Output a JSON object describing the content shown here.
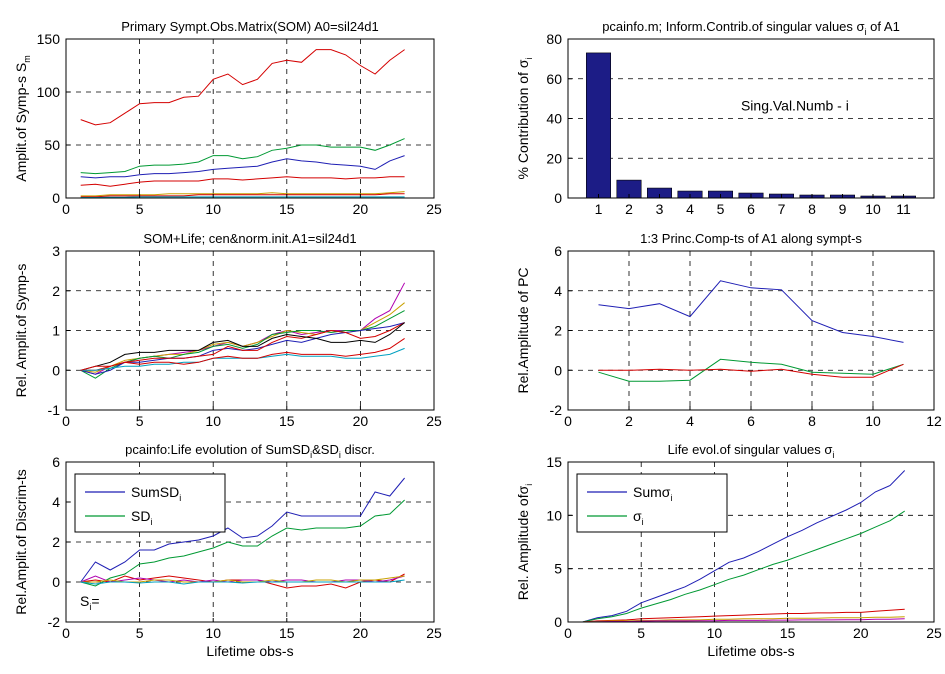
{
  "chart_data": [
    {
      "type": "line",
      "title": "Primary Sympt.Obs.Matrix(SOM) A0=sil24d1",
      "ylabel": "Amplit.of Symp-s S",
      "ylabel_sub": "m",
      "xlim": [
        0,
        25
      ],
      "ylim": [
        0,
        150
      ],
      "xticks": [
        "0",
        "5",
        "10",
        "15",
        "20",
        "25"
      ],
      "yticks": [
        "0",
        "50",
        "100",
        "150"
      ],
      "xticks_v": [
        0,
        5,
        10,
        15,
        20,
        25
      ],
      "yticks_v": [
        0,
        50,
        100,
        150
      ],
      "x": [
        1,
        2,
        3,
        4,
        5,
        6,
        7,
        8,
        9,
        10,
        11,
        12,
        13,
        14,
        15,
        16,
        17,
        18,
        19,
        20,
        21,
        22,
        23
      ],
      "series": [
        {
          "color": "#d40000",
          "values": [
            74,
            69,
            71,
            80,
            89,
            90,
            90,
            95,
            96,
            112,
            117,
            107,
            112,
            127,
            130,
            128,
            140,
            140,
            135,
            125,
            117,
            130,
            140
          ]
        },
        {
          "color": "#009933",
          "values": [
            24,
            23,
            24,
            25,
            30,
            31,
            31,
            32,
            34,
            40,
            40,
            37,
            39,
            45,
            47,
            50,
            50,
            48,
            48,
            48,
            45,
            50,
            56
          ]
        },
        {
          "color": "#1f1fb4",
          "values": [
            20,
            19,
            20,
            20,
            22,
            23,
            23,
            24,
            25,
            27,
            28,
            29,
            30,
            34,
            37,
            35,
            34,
            32,
            31,
            30,
            27,
            35,
            40
          ]
        },
        {
          "color": "#d40000",
          "values": [
            12,
            13,
            11,
            13,
            15,
            16,
            16,
            16,
            16,
            18,
            18,
            17,
            18,
            19,
            20,
            19,
            19,
            19,
            18,
            19,
            19,
            20,
            20
          ]
        },
        {
          "color": "#c8a000",
          "values": [
            2,
            2,
            3,
            3,
            3,
            3,
            4,
            4,
            4,
            4,
            4,
            4,
            4,
            5,
            4,
            4,
            4,
            4,
            4,
            4,
            4,
            5,
            6
          ]
        },
        {
          "color": "#d40000",
          "values": [
            1,
            1,
            2,
            2,
            2,
            2,
            2,
            2,
            3,
            3,
            3,
            3,
            3,
            3,
            3,
            3,
            3,
            3,
            3,
            3,
            3,
            4,
            4
          ]
        },
        {
          "color": "#00a0c0",
          "values": [
            0.5,
            0.5,
            0.8,
            0.8,
            1,
            1,
            1,
            1,
            1,
            1,
            1,
            1,
            1,
            1,
            1,
            1,
            1,
            1,
            1,
            1,
            1,
            1,
            1
          ]
        }
      ]
    },
    {
      "type": "bar",
      "title": "pcainfo.m; Inform.Contrib.of singular values σ",
      "title_sub": "i",
      "title_tail": " of A1",
      "ylabel": "% Contribution of σ",
      "ylabel_sub": "i",
      "annotation": "Sing.Val.Numb - i",
      "categories": [
        "1",
        "2",
        "3",
        "4",
        "5",
        "6",
        "7",
        "8",
        "9",
        "10",
        "11"
      ],
      "values": [
        73,
        9,
        5,
        3.5,
        3.5,
        2.5,
        2,
        1.5,
        1.5,
        1,
        1
      ],
      "ylim": [
        0,
        80
      ],
      "yticks": [
        "0",
        "20",
        "40",
        "60",
        "80"
      ],
      "yticks_v": [
        0,
        20,
        40,
        60,
        80
      ],
      "bar_color": "#1c1c86"
    },
    {
      "type": "line",
      "title": "SOM+Life; cen&norm.init.A1=sil24d1",
      "ylabel": "Rel. Amplit.of Symp-s",
      "xlim": [
        0,
        25
      ],
      "ylim": [
        -1,
        3
      ],
      "xticks": [
        "0",
        "5",
        "10",
        "15",
        "20",
        "25"
      ],
      "yticks": [
        "-1",
        "0",
        "1",
        "2",
        "3"
      ],
      "xticks_v": [
        0,
        5,
        10,
        15,
        20,
        25
      ],
      "yticks_v": [
        -1,
        0,
        1,
        2,
        3
      ],
      "x": [
        1,
        2,
        3,
        4,
        5,
        6,
        7,
        8,
        9,
        10,
        11,
        12,
        13,
        14,
        15,
        16,
        17,
        18,
        19,
        20,
        21,
        22,
        23
      ],
      "series": [
        {
          "color": "#b000b0",
          "values": [
            0,
            -0.1,
            0.1,
            0.2,
            0.3,
            0.35,
            0.4,
            0.45,
            0.5,
            0.6,
            0.7,
            0.6,
            0.7,
            0.9,
            1.0,
            0.9,
            0.95,
            1.0,
            1.0,
            1.0,
            1.3,
            1.5,
            2.2
          ]
        },
        {
          "color": "#c8a000",
          "values": [
            0,
            -0.05,
            0.1,
            0.25,
            0.3,
            0.35,
            0.4,
            0.4,
            0.5,
            0.65,
            0.7,
            0.6,
            0.7,
            0.85,
            1.0,
            0.95,
            0.9,
            1.0,
            0.95,
            1.0,
            1.2,
            1.4,
            1.7
          ]
        },
        {
          "color": "#009933",
          "values": [
            0,
            -0.2,
            0.05,
            0.2,
            0.3,
            0.35,
            0.3,
            0.4,
            0.45,
            0.6,
            0.65,
            0.55,
            0.65,
            0.9,
            0.95,
            1.0,
            1.0,
            0.95,
            1.0,
            1.0,
            1.1,
            1.3,
            1.5
          ]
        },
        {
          "color": "#1f1fb4",
          "values": [
            0,
            -0.1,
            0.0,
            0.2,
            0.2,
            0.25,
            0.3,
            0.3,
            0.35,
            0.5,
            0.55,
            0.5,
            0.55,
            0.65,
            0.75,
            0.7,
            0.8,
            0.9,
            0.95,
            1.0,
            1.05,
            1.1,
            1.2
          ]
        },
        {
          "color": "#d40000",
          "values": [
            0,
            0,
            0.1,
            0.2,
            0.25,
            0.3,
            0.3,
            0.3,
            0.35,
            0.4,
            0.6,
            0.5,
            0.5,
            0.7,
            0.85,
            0.8,
            0.9,
            1.0,
            0.95,
            0.8,
            0.85,
            1.0,
            1.2
          ]
        },
        {
          "color": "#000000",
          "values": [
            0,
            0.1,
            0.2,
            0.4,
            0.45,
            0.45,
            0.5,
            0.5,
            0.5,
            0.7,
            0.75,
            0.6,
            0.6,
            0.8,
            0.9,
            0.85,
            0.8,
            0.7,
            0.7,
            0.75,
            0.7,
            0.9,
            1.2
          ]
        },
        {
          "color": "#00a0c0",
          "values": [
            0,
            0,
            0.05,
            0.1,
            0.1,
            0.15,
            0.15,
            0.2,
            0.2,
            0.3,
            0.3,
            0.3,
            0.3,
            0.35,
            0.4,
            0.35,
            0.35,
            0.35,
            0.3,
            0.3,
            0.35,
            0.4,
            0.55
          ]
        },
        {
          "color": "#d40000",
          "values": [
            0,
            0.1,
            0.1,
            0.2,
            0.15,
            0.2,
            0.2,
            0.15,
            0.2,
            0.3,
            0.35,
            0.3,
            0.3,
            0.4,
            0.45,
            0.4,
            0.4,
            0.4,
            0.35,
            0.4,
            0.45,
            0.55,
            0.8
          ]
        }
      ]
    },
    {
      "type": "line",
      "title": "1:3 Princ.Comp-ts of A1 along sympt-s",
      "ylabel": "Rel.Amplitude of PC",
      "xlim": [
        0,
        12
      ],
      "ylim": [
        -2,
        6
      ],
      "xticks": [
        "0",
        "2",
        "4",
        "6",
        "8",
        "10",
        "12"
      ],
      "yticks": [
        "-2",
        "0",
        "2",
        "4",
        "6"
      ],
      "xticks_v": [
        0,
        2,
        4,
        6,
        8,
        10,
        12
      ],
      "yticks_v": [
        -2,
        0,
        2,
        4,
        6
      ],
      "x": [
        1,
        2,
        3,
        4,
        5,
        6,
        7,
        8,
        9,
        10,
        11
      ],
      "series": [
        {
          "color": "#1f1fb4",
          "values": [
            3.3,
            3.1,
            3.35,
            2.7,
            4.5,
            4.15,
            4.05,
            2.5,
            1.9,
            1.7,
            1.4
          ]
        },
        {
          "color": "#009933",
          "values": [
            -0.1,
            -0.55,
            -0.55,
            -0.5,
            0.55,
            0.4,
            0.3,
            -0.1,
            -0.15,
            -0.2,
            0.3
          ]
        },
        {
          "color": "#d40000",
          "values": [
            0.0,
            0.0,
            0.05,
            0.0,
            0.05,
            -0.05,
            0.05,
            -0.2,
            -0.35,
            -0.35,
            0.3
          ]
        }
      ]
    },
    {
      "type": "line",
      "title": "pcainfo:Life evolution of SumSD",
      "title_sub": "i",
      "title_mid": "&SD",
      "title_sub2": "i",
      "title_tail": " discr.",
      "xlabel": "Lifetime obs-s",
      "ylabel": "Rel.Amplit.of Discrim-ts",
      "xlim": [
        0,
        25
      ],
      "ylim": [
        -2,
        6
      ],
      "xticks": [
        "0",
        "5",
        "10",
        "15",
        "20",
        "25"
      ],
      "yticks": [
        "-2",
        "0",
        "2",
        "4",
        "6"
      ],
      "xticks_v": [
        0,
        5,
        10,
        15,
        20,
        25
      ],
      "yticks_v": [
        -2,
        0,
        2,
        4,
        6
      ],
      "legend": [
        {
          "label": "SumSD",
          "sub": "i",
          "color": "#1f1fb4"
        },
        {
          "label": "SD",
          "sub": "i",
          "color": "#009933"
        }
      ],
      "annotation": "S",
      "annotation_sub": "i",
      "annotation_tail": "=",
      "x": [
        1,
        2,
        3,
        4,
        5,
        6,
        7,
        8,
        9,
        10,
        11,
        12,
        13,
        14,
        15,
        16,
        17,
        18,
        19,
        20,
        21,
        22,
        23
      ],
      "series": [
        {
          "color": "#1f1fb4",
          "values": [
            0,
            1.0,
            0.6,
            1.0,
            1.6,
            1.6,
            1.9,
            2.0,
            2.1,
            2.3,
            2.7,
            2.2,
            2.3,
            2.8,
            3.5,
            3.3,
            3.3,
            3.3,
            3.3,
            3.3,
            4.5,
            4.3,
            5.2
          ]
        },
        {
          "color": "#009933",
          "values": [
            0,
            -0.2,
            0.2,
            0.4,
            0.9,
            1.0,
            1.2,
            1.3,
            1.5,
            1.7,
            2.0,
            1.8,
            1.8,
            2.3,
            2.7,
            2.6,
            2.7,
            2.7,
            2.7,
            2.8,
            3.3,
            3.4,
            4.1
          ]
        },
        {
          "color": "#d40000",
          "values": [
            0,
            0.1,
            0.0,
            0.3,
            0.1,
            0.2,
            0.3,
            0.2,
            0.1,
            0.0,
            0.1,
            0.1,
            0.1,
            -0.1,
            -0.3,
            -0.2,
            -0.2,
            -0.1,
            -0.3,
            0.0,
            0.1,
            0.0,
            0.4
          ]
        },
        {
          "color": "#b000b0",
          "values": [
            0,
            0.3,
            0.0,
            0.1,
            0.2,
            0.1,
            0.0,
            0.1,
            0.0,
            0.1,
            0.0,
            0.1,
            0.1,
            0.0,
            0.1,
            0.1,
            0.0,
            0.0,
            0.1,
            0.1,
            0.0,
            0.1,
            0.3
          ]
        },
        {
          "color": "#c8a000",
          "values": [
            0,
            0.0,
            0.1,
            0.0,
            0.0,
            0.1,
            0.1,
            0.0,
            0.0,
            0.0,
            0.1,
            0.0,
            0.0,
            0.1,
            0.0,
            0.0,
            0.1,
            0.1,
            0.0,
            0.1,
            0.1,
            0.2,
            0.3
          ]
        },
        {
          "color": "#00a0c0",
          "values": [
            0,
            -0.1,
            0.0,
            0.0,
            -0.05,
            0.0,
            0.0,
            -0.1,
            0.0,
            0.0,
            0.0,
            -0.05,
            0.0,
            0.0,
            0.0,
            0.0,
            0.0,
            0.0,
            0.0,
            0.0,
            0.0,
            0.0,
            0.1
          ]
        }
      ]
    },
    {
      "type": "line",
      "title": "Life evol.of singular values σ",
      "title_sub": "i",
      "xlabel": "Lifetime obs-s",
      "ylabel": "Rel. Amplitude ofσ",
      "ylabel_sub": "i",
      "xlim": [
        0,
        25
      ],
      "ylim": [
        0,
        15
      ],
      "xticks": [
        "0",
        "5",
        "10",
        "15",
        "20",
        "25"
      ],
      "yticks": [
        "0",
        "5",
        "10",
        "15"
      ],
      "xticks_v": [
        0,
        5,
        10,
        15,
        20,
        25
      ],
      "yticks_v": [
        0,
        5,
        10,
        15
      ],
      "legend": [
        {
          "label": "Sumσ",
          "sub": "i",
          "color": "#1f1fb4"
        },
        {
          "label": "σ",
          "sub": "i",
          "color": "#009933"
        }
      ],
      "x": [
        1,
        2,
        3,
        4,
        5,
        6,
        7,
        8,
        9,
        10,
        11,
        12,
        13,
        14,
        15,
        16,
        17,
        18,
        19,
        20,
        21,
        22,
        23
      ],
      "series": [
        {
          "color": "#1f1fb4",
          "values": [
            0,
            0.4,
            0.6,
            1.0,
            1.8,
            2.3,
            2.8,
            3.3,
            4.0,
            4.8,
            5.6,
            6.0,
            6.6,
            7.3,
            8.0,
            8.6,
            9.3,
            9.9,
            10.5,
            11.2,
            12.2,
            12.8,
            14.2
          ]
        },
        {
          "color": "#009933",
          "values": [
            0,
            0.3,
            0.5,
            0.8,
            1.3,
            1.7,
            2.1,
            2.6,
            3.0,
            3.5,
            4.0,
            4.4,
            4.9,
            5.4,
            5.8,
            6.3,
            6.8,
            7.3,
            7.8,
            8.3,
            8.9,
            9.5,
            10.4
          ]
        },
        {
          "color": "#d40000",
          "values": [
            0,
            0.1,
            0.15,
            0.2,
            0.3,
            0.35,
            0.4,
            0.45,
            0.5,
            0.55,
            0.6,
            0.65,
            0.7,
            0.75,
            0.8,
            0.8,
            0.85,
            0.85,
            0.9,
            0.9,
            1.0,
            1.1,
            1.2
          ]
        },
        {
          "color": "#c8a000",
          "values": [
            0,
            0.05,
            0.1,
            0.1,
            0.15,
            0.15,
            0.2,
            0.2,
            0.2,
            0.25,
            0.25,
            0.3,
            0.3,
            0.3,
            0.35,
            0.35,
            0.35,
            0.4,
            0.4,
            0.4,
            0.45,
            0.45,
            0.5
          ]
        },
        {
          "color": "#b000b0",
          "values": [
            0,
            0.02,
            0.05,
            0.05,
            0.08,
            0.1,
            0.1,
            0.1,
            0.12,
            0.12,
            0.15,
            0.15,
            0.15,
            0.18,
            0.18,
            0.2,
            0.2,
            0.2,
            0.22,
            0.22,
            0.25,
            0.25,
            0.3
          ]
        }
      ]
    }
  ]
}
